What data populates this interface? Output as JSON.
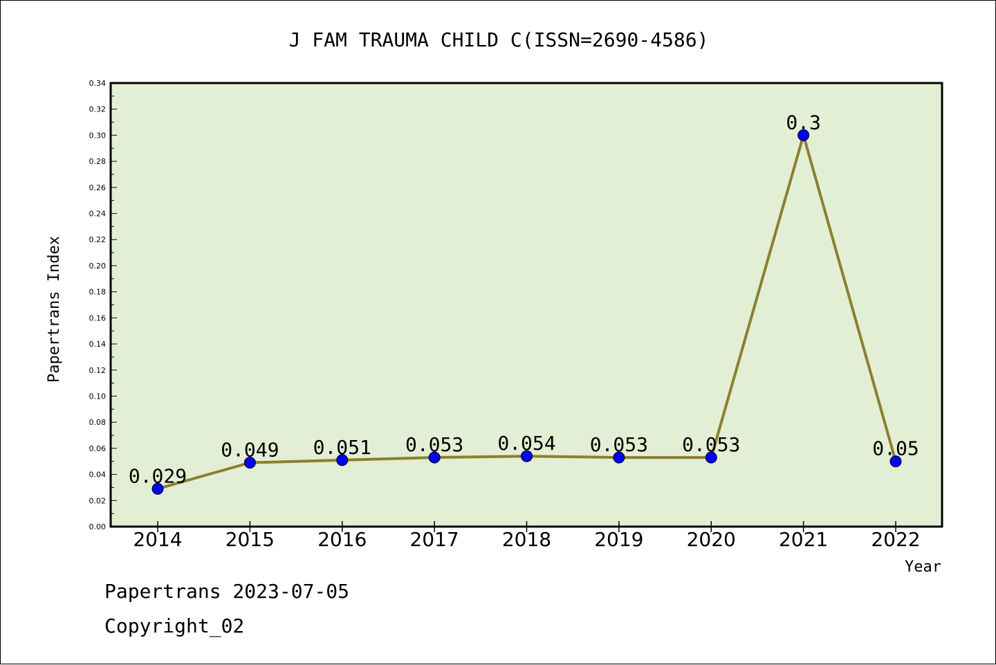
{
  "colors": {
    "plot_background": "#e2efd4",
    "line": "#8b7f32",
    "marker": "#0000ff",
    "axis": "#000000"
  },
  "footer": {
    "source": "Papertrans 2023-07-05",
    "copyright": "Copyright_02"
  },
  "chart_data": {
    "type": "line",
    "title": "J FAM TRAUMA CHILD C(ISSN=2690-4586)",
    "xlabel": "Year",
    "ylabel": "Papertrans Index",
    "categories": [
      "2014",
      "2015",
      "2016",
      "2017",
      "2018",
      "2019",
      "2020",
      "2021",
      "2022"
    ],
    "series": [
      {
        "values": [
          0.029,
          0.049,
          0.051,
          0.053,
          0.054,
          0.053,
          0.053,
          0.3,
          0.05
        ],
        "labels": [
          "0.029",
          "0.049",
          "0.051",
          "0.053",
          "0.054",
          "0.053",
          "0.053",
          "0.3",
          "0.05"
        ]
      }
    ],
    "ylim": [
      0,
      0.34
    ],
    "yticks": [
      "0.00",
      "0.02",
      "0.04",
      "0.06",
      "0.08",
      "0.10",
      "0.12",
      "0.14",
      "0.16",
      "0.18",
      "0.20",
      "0.22",
      "0.24",
      "0.26",
      "0.28",
      "0.30",
      "0.32",
      "0.34"
    ],
    "grid": false,
    "legend": false
  }
}
